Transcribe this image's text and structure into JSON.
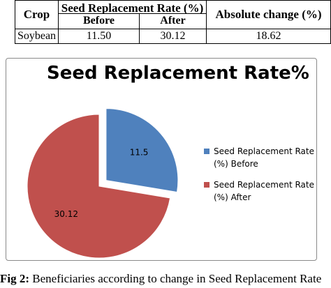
{
  "table": {
    "headers": {
      "crop": "Crop",
      "srr": "Seed Replacement Rate (%)",
      "before": "Before",
      "after": "After",
      "abs_change": "Absolute change (%)"
    },
    "rows": [
      {
        "crop": "Soybean",
        "before": "11.50",
        "after": "30.12",
        "abs_change": "18.62"
      }
    ]
  },
  "chart_data": {
    "type": "pie",
    "title": "Seed Replacement Rate%",
    "labels": [
      "Seed Replacement Rate (%) Before",
      "Seed Replacement Rate (%) After"
    ],
    "values": [
      11.5,
      30.12
    ],
    "value_labels": [
      "11.5",
      "30.12"
    ],
    "exploded": [
      true,
      false
    ],
    "colors": [
      "#4f81bd",
      "#c0504d"
    ],
    "legend_placement": "right",
    "legend": [
      {
        "line1": "Seed Replacement Rate",
        "line2": "(%) Before"
      },
      {
        "line1": "Seed Replacement Rate",
        "line2": "(%) After"
      }
    ]
  },
  "caption": {
    "prefix": "Fig 2:",
    "text": " Beneficiaries according to change in Seed Replacement Rate"
  }
}
